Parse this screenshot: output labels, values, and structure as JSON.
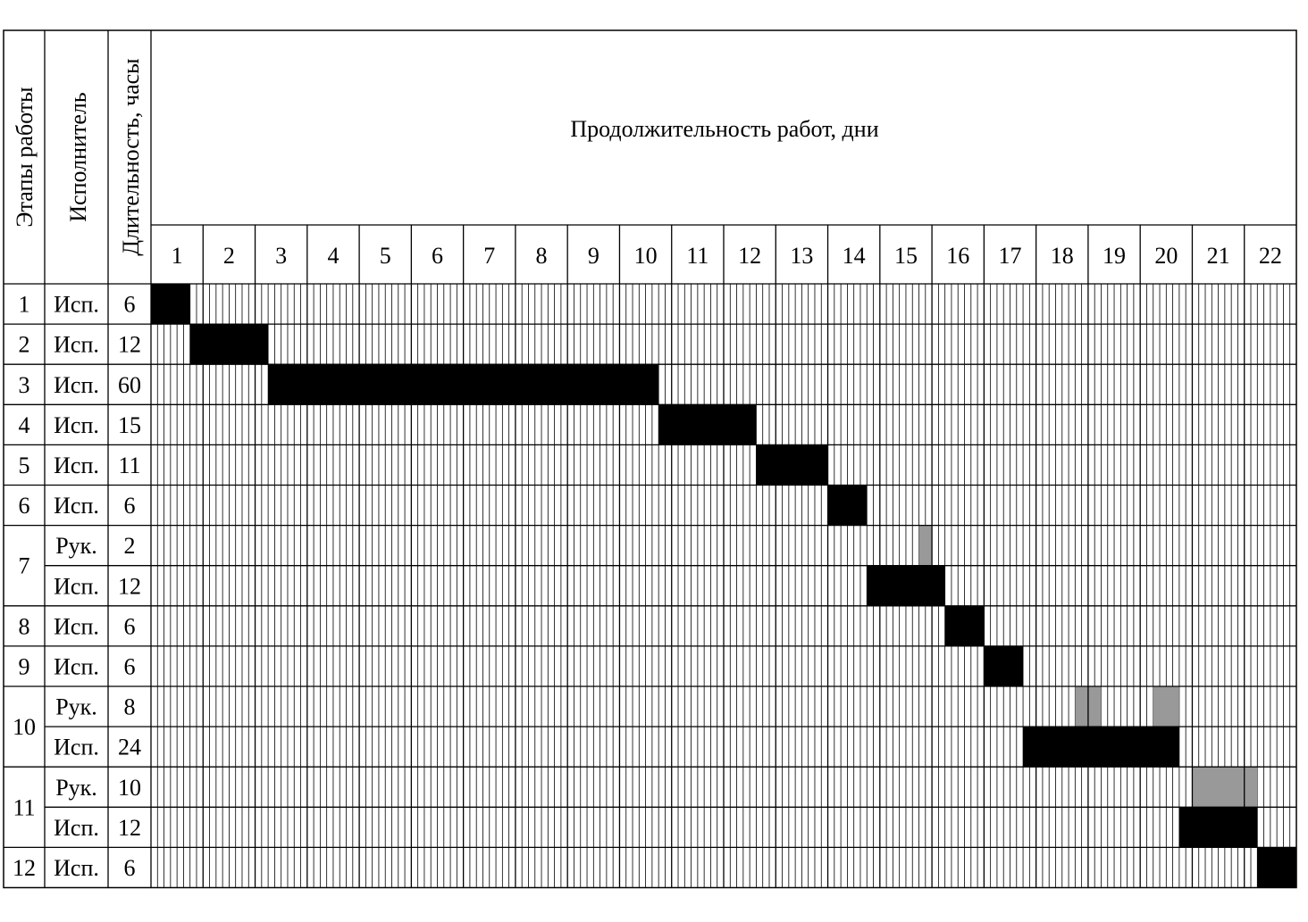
{
  "header": {
    "stage_label": "Этапы работы",
    "executor_label": "Исполнитель",
    "duration_label": "Длительность, часы",
    "timeline_title": "Продолжительность работ, дни"
  },
  "days": [
    "1",
    "2",
    "3",
    "4",
    "5",
    "6",
    "7",
    "8",
    "9",
    "10",
    "11",
    "12",
    "13",
    "14",
    "15",
    "16",
    "17",
    "18",
    "19",
    "20",
    "21",
    "22"
  ],
  "hours_per_day": 8,
  "colors": {
    "executor_bar": "#000000",
    "manager_bar": "#999999",
    "grid": "#000000"
  },
  "stages": [
    {
      "num": "1",
      "rows": [
        {
          "who": "Исп.",
          "hours": "6",
          "segments": [
            [
              0,
              6
            ]
          ],
          "kind": "executor"
        }
      ]
    },
    {
      "num": "2",
      "rows": [
        {
          "who": "Исп.",
          "hours": "12",
          "segments": [
            [
              6,
              18
            ]
          ],
          "kind": "executor"
        }
      ]
    },
    {
      "num": "3",
      "rows": [
        {
          "who": "Исп.",
          "hours": "60",
          "segments": [
            [
              18,
              78
            ]
          ],
          "kind": "executor"
        }
      ]
    },
    {
      "num": "4",
      "rows": [
        {
          "who": "Исп.",
          "hours": "15",
          "segments": [
            [
              78,
              93
            ]
          ],
          "kind": "executor"
        }
      ]
    },
    {
      "num": "5",
      "rows": [
        {
          "who": "Исп.",
          "hours": "11",
          "segments": [
            [
              93,
              104
            ]
          ],
          "kind": "executor"
        }
      ]
    },
    {
      "num": "6",
      "rows": [
        {
          "who": "Исп.",
          "hours": "6",
          "segments": [
            [
              104,
              110
            ]
          ],
          "kind": "executor"
        }
      ]
    },
    {
      "num": "7",
      "rows": [
        {
          "who": "Рук.",
          "hours": "2",
          "segments": [
            [
              118,
              120
            ]
          ],
          "kind": "manager"
        },
        {
          "who": "Исп.",
          "hours": "12",
          "segments": [
            [
              110,
              122
            ]
          ],
          "kind": "executor"
        }
      ]
    },
    {
      "num": "8",
      "rows": [
        {
          "who": "Исп.",
          "hours": "6",
          "segments": [
            [
              122,
              128
            ]
          ],
          "kind": "executor"
        }
      ]
    },
    {
      "num": "9",
      "rows": [
        {
          "who": "Исп.",
          "hours": "6",
          "segments": [
            [
              128,
              134
            ]
          ],
          "kind": "executor"
        }
      ]
    },
    {
      "num": "10",
      "rows": [
        {
          "who": "Рук.",
          "hours": "8",
          "segments": [
            [
              142,
              146
            ],
            [
              154,
              158
            ]
          ],
          "kind": "manager"
        },
        {
          "who": "Исп.",
          "hours": "24",
          "segments": [
            [
              134,
              158
            ]
          ],
          "kind": "executor"
        }
      ]
    },
    {
      "num": "11",
      "rows": [
        {
          "who": "Рук.",
          "hours": "10",
          "segments": [
            [
              160,
              170
            ]
          ],
          "kind": "manager"
        },
        {
          "who": "Исп.",
          "hours": "12",
          "segments": [
            [
              158,
              170
            ]
          ],
          "kind": "executor"
        }
      ]
    },
    {
      "num": "12",
      "rows": [
        {
          "who": "Исп.",
          "hours": "6",
          "segments": [
            [
              170,
              176
            ]
          ],
          "kind": "executor"
        }
      ]
    }
  ]
}
